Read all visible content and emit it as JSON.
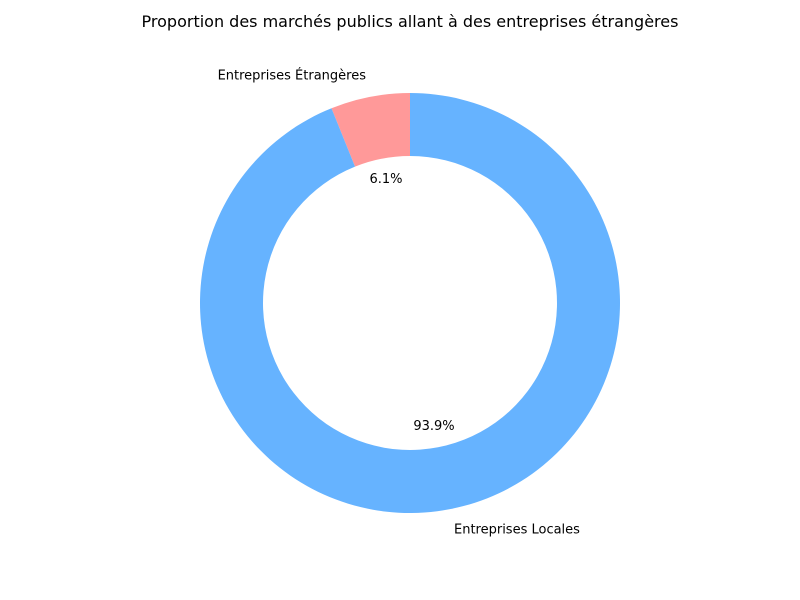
{
  "chart_data": {
    "type": "pie",
    "title": "Proportion des marchés publics allant à des entreprises étrangères",
    "donut": true,
    "slices": [
      {
        "label": "Entreprises Étrangères",
        "value": 6.1,
        "display": "6.1%",
        "color": "#ff9999"
      },
      {
        "label": "Entreprises Locales",
        "value": 93.9,
        "display": "93.9%",
        "color": "#66b3ff"
      }
    ]
  }
}
